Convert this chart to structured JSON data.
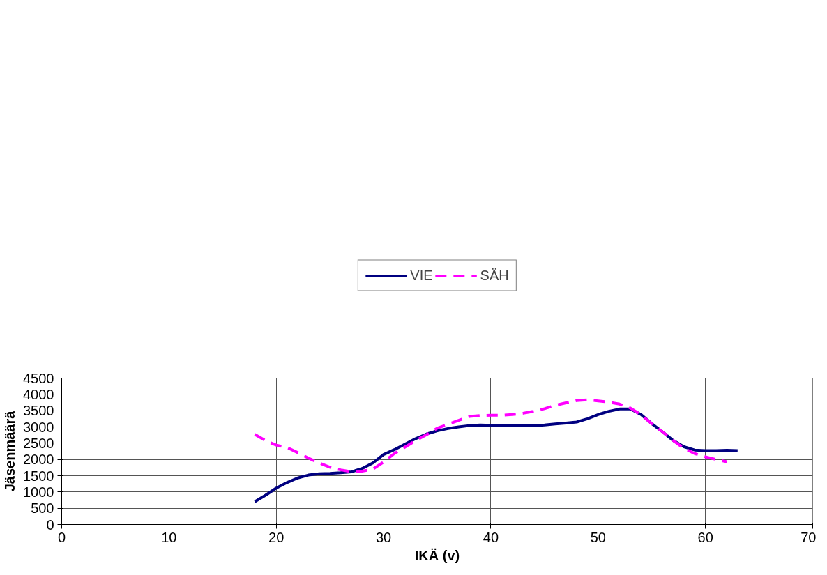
{
  "chart_data": {
    "type": "line",
    "xlabel": "IKÄ (v)",
    "ylabel": "Jäsenmäärä",
    "xlim": [
      0,
      70
    ],
    "xticks": [
      0,
      10,
      20,
      30,
      40,
      50,
      60,
      70
    ],
    "ylim": [
      0,
      4500
    ],
    "yticks": [
      0,
      500,
      1000,
      1500,
      2000,
      2500,
      3000,
      3500,
      4000,
      4500
    ],
    "grid": true,
    "legend": "top",
    "marker": "none",
    "series": [
      {
        "name": "VIE",
        "color": "#000080",
        "line_style": "solid",
        "x": [
          18,
          19,
          20,
          21,
          22,
          23,
          24,
          25,
          26,
          27,
          28,
          29,
          30,
          31,
          32,
          33,
          34,
          35,
          36,
          37,
          38,
          39,
          40,
          41,
          42,
          43,
          44,
          45,
          46,
          47,
          48,
          49,
          50,
          51,
          52,
          53,
          54,
          55,
          56,
          57,
          58,
          59,
          60,
          61,
          62,
          63
        ],
        "values": [
          700,
          900,
          1120,
          1290,
          1430,
          1520,
          1560,
          1570,
          1590,
          1620,
          1720,
          1890,
          2150,
          2300,
          2470,
          2640,
          2780,
          2880,
          2950,
          3000,
          3040,
          3060,
          3050,
          3040,
          3030,
          3030,
          3040,
          3060,
          3090,
          3120,
          3150,
          3250,
          3380,
          3480,
          3550,
          3550,
          3380,
          3100,
          2850,
          2580,
          2390,
          2290,
          2270,
          2270,
          2280,
          2270
        ]
      },
      {
        "name": "SÄH",
        "color": "#ff00ff",
        "line_style": "dashed",
        "x": [
          18,
          19,
          20,
          21,
          22,
          23,
          24,
          25,
          26,
          27,
          28,
          29,
          30,
          31,
          32,
          33,
          34,
          35,
          36,
          37,
          38,
          39,
          40,
          41,
          42,
          43,
          44,
          45,
          46,
          47,
          48,
          49,
          50,
          51,
          52,
          53,
          54,
          55,
          56,
          57,
          58,
          59,
          60,
          61,
          62
        ],
        "values": [
          2770,
          2580,
          2440,
          2370,
          2210,
          2040,
          1890,
          1760,
          1680,
          1620,
          1640,
          1700,
          1920,
          2180,
          2380,
          2580,
          2760,
          2960,
          3080,
          3200,
          3320,
          3350,
          3360,
          3360,
          3380,
          3420,
          3480,
          3560,
          3660,
          3740,
          3810,
          3830,
          3800,
          3760,
          3700,
          3580,
          3370,
          3100,
          2850,
          2580,
          2340,
          2180,
          2080,
          2000,
          1930
        ]
      }
    ]
  }
}
